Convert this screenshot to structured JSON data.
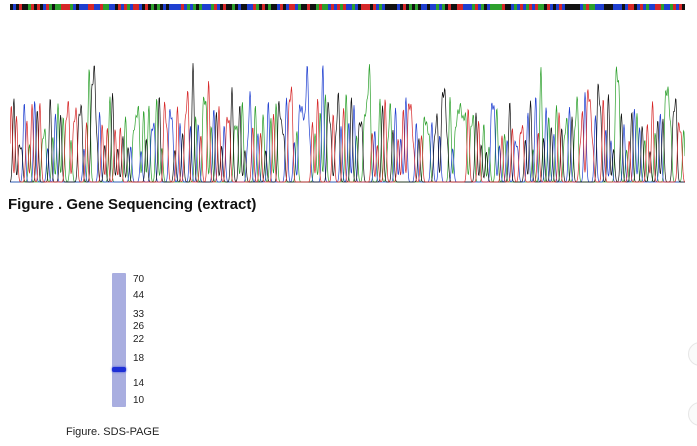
{
  "figure1": {
    "caption": "Figure . Gene Sequencing (extract)",
    "base_colors": {
      "A": "#2ca02c",
      "C": "#1f3fd0",
      "G": "#111111",
      "T": "#d62728"
    }
  },
  "figure2": {
    "caption": "Figure. SDS-PAGE",
    "markers": [
      "70",
      "44",
      "33",
      "26",
      "22",
      "18",
      "14",
      "10"
    ],
    "lane_color": "#a9aee0",
    "band_color": "#1d2fd6"
  }
}
